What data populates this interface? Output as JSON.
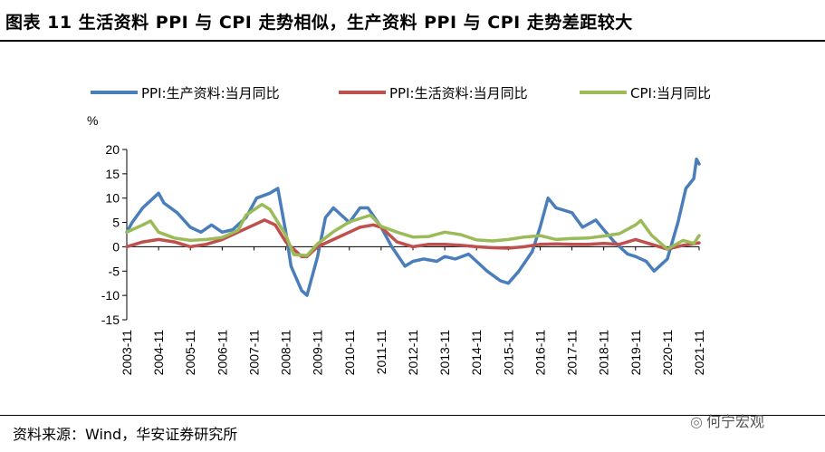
{
  "header": {
    "title": "图表 11  生活资料 PPI 与 CPI 走势相似，生产资料 PPI 与 CPI 走势差距较大"
  },
  "footer": {
    "source": "资料来源：Wind，华安证券研究所",
    "watermark": "何宁宏观",
    "watermark_icon": "wechat-icon"
  },
  "chart_data": {
    "type": "line",
    "title": "",
    "ylabel": "%",
    "xlabel": "",
    "ylim": [
      -15,
      20
    ],
    "yticks": [
      -15,
      -10,
      -5,
      0,
      5,
      10,
      15,
      20
    ],
    "x_start": "2003-11",
    "x_end": "2021-11",
    "x_ticks": [
      "2003-11",
      "2004-11",
      "2005-11",
      "2006-11",
      "2007-11",
      "2008-11",
      "2009-11",
      "2010-11",
      "2011-11",
      "2012-11",
      "2013-11",
      "2014-11",
      "2015-11",
      "2016-11",
      "2017-11",
      "2018-11",
      "2019-11",
      "2020-11",
      "2021-11"
    ],
    "legend_position": "top",
    "series": [
      {
        "name": "PPI:生产资料:当月同比",
        "color": "#4a7ebb",
        "points": [
          [
            "2003-11",
            3
          ],
          [
            "2004-01",
            5
          ],
          [
            "2004-05",
            8
          ],
          [
            "2004-09",
            10
          ],
          [
            "2004-11",
            11
          ],
          [
            "2005-01",
            9
          ],
          [
            "2005-06",
            7
          ],
          [
            "2005-11",
            4
          ],
          [
            "2006-03",
            3
          ],
          [
            "2006-07",
            4.5
          ],
          [
            "2006-11",
            3
          ],
          [
            "2007-03",
            3.5
          ],
          [
            "2007-08",
            6
          ],
          [
            "2007-12",
            10
          ],
          [
            "2008-05",
            11
          ],
          [
            "2008-08",
            12
          ],
          [
            "2008-11",
            3
          ],
          [
            "2009-01",
            -4
          ],
          [
            "2009-05",
            -9
          ],
          [
            "2009-07",
            -10
          ],
          [
            "2009-11",
            -2
          ],
          [
            "2010-02",
            6
          ],
          [
            "2010-05",
            8
          ],
          [
            "2010-11",
            5
          ],
          [
            "2011-03",
            8
          ],
          [
            "2011-06",
            8
          ],
          [
            "2011-11",
            4
          ],
          [
            "2012-03",
            0
          ],
          [
            "2012-08",
            -4
          ],
          [
            "2012-11",
            -3
          ],
          [
            "2013-03",
            -2.5
          ],
          [
            "2013-08",
            -3
          ],
          [
            "2013-11",
            -2
          ],
          [
            "2014-03",
            -2.5
          ],
          [
            "2014-08",
            -1.5
          ],
          [
            "2014-11",
            -3
          ],
          [
            "2015-03",
            -5
          ],
          [
            "2015-08",
            -7
          ],
          [
            "2015-11",
            -7.5
          ],
          [
            "2016-03",
            -5
          ],
          [
            "2016-08",
            -1
          ],
          [
            "2016-11",
            4
          ],
          [
            "2017-02",
            10
          ],
          [
            "2017-05",
            8
          ],
          [
            "2017-11",
            7
          ],
          [
            "2018-03",
            4
          ],
          [
            "2018-08",
            5.5
          ],
          [
            "2018-11",
            3.5
          ],
          [
            "2019-03",
            1
          ],
          [
            "2019-08",
            -1.5
          ],
          [
            "2019-11",
            -2
          ],
          [
            "2020-03",
            -3
          ],
          [
            "2020-06",
            -5
          ],
          [
            "2020-11",
            -2.5
          ],
          [
            "2021-03",
            5
          ],
          [
            "2021-06",
            12
          ],
          [
            "2021-09",
            14
          ],
          [
            "2021-10",
            18
          ],
          [
            "2021-11",
            17
          ]
        ]
      },
      {
        "name": "PPI:生活资料:当月同比",
        "color": "#c0504d",
        "points": [
          [
            "2003-11",
            0
          ],
          [
            "2004-05",
            1
          ],
          [
            "2004-11",
            1.5
          ],
          [
            "2005-05",
            1
          ],
          [
            "2005-11",
            0
          ],
          [
            "2006-05",
            0.5
          ],
          [
            "2006-11",
            1.5
          ],
          [
            "2007-05",
            3
          ],
          [
            "2007-11",
            4.5
          ],
          [
            "2008-03",
            5.5
          ],
          [
            "2008-07",
            4.5
          ],
          [
            "2008-11",
            1
          ],
          [
            "2009-05",
            -2
          ],
          [
            "2009-07",
            -2
          ],
          [
            "2009-11",
            0
          ],
          [
            "2010-05",
            1.5
          ],
          [
            "2010-11",
            3
          ],
          [
            "2011-03",
            4
          ],
          [
            "2011-08",
            4.5
          ],
          [
            "2011-11",
            4
          ],
          [
            "2012-05",
            1
          ],
          [
            "2012-11",
            0
          ],
          [
            "2013-05",
            0.5
          ],
          [
            "2013-11",
            0.5
          ],
          [
            "2014-05",
            0.3
          ],
          [
            "2014-11",
            0
          ],
          [
            "2015-05",
            -0.2
          ],
          [
            "2015-11",
            -0.3
          ],
          [
            "2016-05",
            0
          ],
          [
            "2016-11",
            0.5
          ],
          [
            "2017-05",
            0.6
          ],
          [
            "2017-11",
            0.5
          ],
          [
            "2018-05",
            0.5
          ],
          [
            "2018-11",
            0.7
          ],
          [
            "2019-05",
            0.5
          ],
          [
            "2019-11",
            1.5
          ],
          [
            "2020-05",
            0.5
          ],
          [
            "2020-11",
            -0.5
          ],
          [
            "2021-05",
            0.3
          ],
          [
            "2021-11",
            0.8
          ]
        ]
      },
      {
        "name": "CPI:当月同比",
        "color": "#9bbb59",
        "points": [
          [
            "2003-11",
            3
          ],
          [
            "2004-01",
            3.5
          ],
          [
            "2004-05",
            4.5
          ],
          [
            "2004-08",
            5.3
          ],
          [
            "2004-11",
            3
          ],
          [
            "2005-05",
            1.8
          ],
          [
            "2005-11",
            1.3
          ],
          [
            "2006-05",
            1.5
          ],
          [
            "2006-11",
            1.9
          ],
          [
            "2007-05",
            3.4
          ],
          [
            "2007-08",
            6.5
          ],
          [
            "2008-02",
            8.7
          ],
          [
            "2008-05",
            7.7
          ],
          [
            "2008-11",
            2.4
          ],
          [
            "2009-02",
            -1.6
          ],
          [
            "2009-07",
            -1.8
          ],
          [
            "2009-11",
            0.6
          ],
          [
            "2010-05",
            3.1
          ],
          [
            "2010-11",
            5.1
          ],
          [
            "2011-07",
            6.5
          ],
          [
            "2011-11",
            4.2
          ],
          [
            "2012-05",
            3
          ],
          [
            "2012-11",
            2
          ],
          [
            "2013-05",
            2.1
          ],
          [
            "2013-11",
            3
          ],
          [
            "2014-05",
            2.5
          ],
          [
            "2014-11",
            1.4
          ],
          [
            "2015-05",
            1.2
          ],
          [
            "2015-11",
            1.5
          ],
          [
            "2016-05",
            2
          ],
          [
            "2016-11",
            2.3
          ],
          [
            "2017-05",
            1.5
          ],
          [
            "2017-11",
            1.7
          ],
          [
            "2018-05",
            1.8
          ],
          [
            "2018-11",
            2.2
          ],
          [
            "2019-05",
            2.7
          ],
          [
            "2019-11",
            4.5
          ],
          [
            "2020-01",
            5.4
          ],
          [
            "2020-05",
            2.4
          ],
          [
            "2020-11",
            -0.5
          ],
          [
            "2021-05",
            1.3
          ],
          [
            "2021-09",
            0.7
          ],
          [
            "2021-11",
            2.3
          ]
        ]
      }
    ]
  }
}
